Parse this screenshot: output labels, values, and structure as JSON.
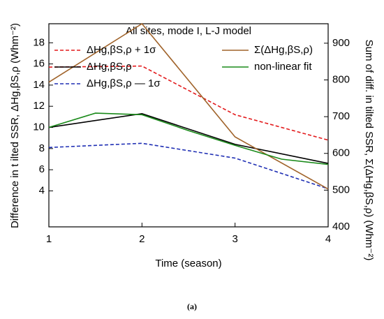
{
  "chart_data": {
    "type": "line",
    "title": "All sites, mode I, L-J model",
    "xlabel": "Time (season)",
    "ylabel": "Difference in t ilted SSR, ΔHg,βS,ρ (Whm⁻²)",
    "y2label": "Sum of diff. in tilted SSR, Σ(ΔHg,βS,ρ) (Whm⁻²)",
    "caption": "(a)",
    "x": [
      1,
      2,
      3,
      4
    ],
    "xlim": [
      1,
      4
    ],
    "xticks": [
      1,
      2,
      3,
      4
    ],
    "ylim": [
      0.6,
      19.8
    ],
    "yticks": [
      4,
      6,
      8,
      10,
      12,
      14,
      16,
      18
    ],
    "y2lim": [
      400,
      953
    ],
    "y2ticks": [
      400,
      500,
      600,
      700,
      800,
      900
    ],
    "legend": "top",
    "series": [
      {
        "name": "ΔHg,βS,ρ + 1σ",
        "color": "#e31a1c",
        "dash": true,
        "values": [
          15.7,
          15.8,
          11.2,
          8.8
        ]
      },
      {
        "name": "ΔHg,βS,ρ",
        "color": "#000000",
        "values": [
          10.0,
          11.3,
          8.4,
          6.6
        ]
      },
      {
        "name": "ΔHg,βS,ρ — 1σ",
        "color": "#1f2fb4",
        "dash": true,
        "values": [
          8.1,
          8.5,
          7.1,
          4.2
        ]
      },
      {
        "name": "Σ(ΔHg,βS,ρ)",
        "color": "#a0632a",
        "axis": "y2",
        "values": [
          794,
          953,
          645,
          503
        ]
      },
      {
        "name": "non-linear fit",
        "color": "#1a8a1a",
        "x": [
          1,
          1.5,
          2,
          2.5,
          3,
          3.5,
          4
        ],
        "values": [
          10.0,
          11.35,
          11.2,
          9.7,
          8.3,
          7.0,
          6.5
        ]
      }
    ]
  }
}
